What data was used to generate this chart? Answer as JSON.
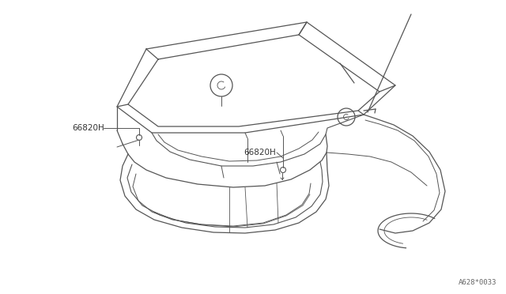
{
  "bg_color": "#ffffff",
  "line_color": "#555555",
  "label_color": "#333333",
  "part_label_1": "66820H",
  "part_label_2": "66820H",
  "diagram_number": "A628*0033",
  "fig_width": 6.4,
  "fig_height": 3.72,
  "dpi": 100
}
